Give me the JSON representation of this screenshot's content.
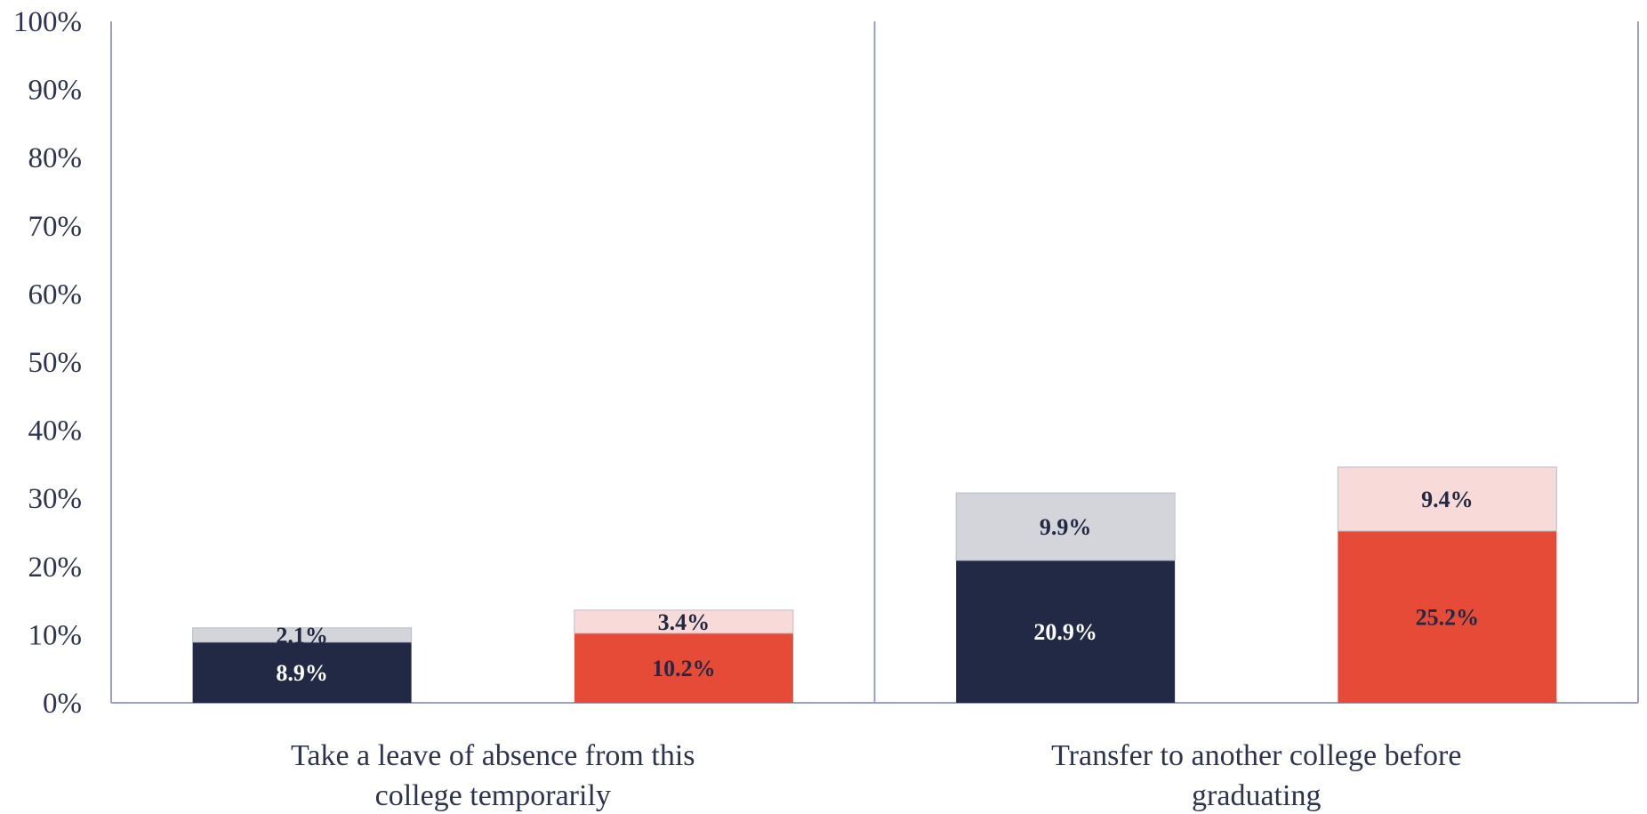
{
  "chart_data": {
    "type": "bar",
    "stacked": true,
    "categories": [
      [
        "Take a leave of absence from this",
        "college temporarily"
      ],
      [
        "Transfer to another college before",
        "graduating"
      ]
    ],
    "bars": [
      {
        "values": [
          8.9,
          2.1
        ],
        "labels": [
          "8.9%",
          "2.1%"
        ],
        "colors": [
          "#212944",
          "#d4d5db"
        ],
        "label_colors": [
          "#ffffff",
          "#212944"
        ]
      },
      {
        "values": [
          10.2,
          3.4
        ],
        "labels": [
          "10.2%",
          "3.4%"
        ],
        "colors": [
          "#e64b37",
          "#f8dbd8"
        ],
        "label_colors": [
          "#212944",
          "#212944"
        ]
      },
      {
        "values": [
          20.9,
          9.9
        ],
        "labels": [
          "20.9%",
          "9.9%"
        ],
        "colors": [
          "#212944",
          "#d4d5db"
        ],
        "label_colors": [
          "#ffffff",
          "#212944"
        ]
      },
      {
        "values": [
          25.2,
          9.4
        ],
        "labels": [
          "25.2%",
          "9.4%"
        ],
        "colors": [
          "#e64b37",
          "#f8dbd8"
        ],
        "label_colors": [
          "#212944",
          "#212944"
        ]
      }
    ],
    "yticks": [
      "0%",
      "10%",
      "20%",
      "30%",
      "40%",
      "50%",
      "60%",
      "70%",
      "80%",
      "90%",
      "100%"
    ],
    "ylim": [
      0,
      100
    ],
    "grid": false,
    "title": "",
    "xlabel": "",
    "ylabel": ""
  }
}
